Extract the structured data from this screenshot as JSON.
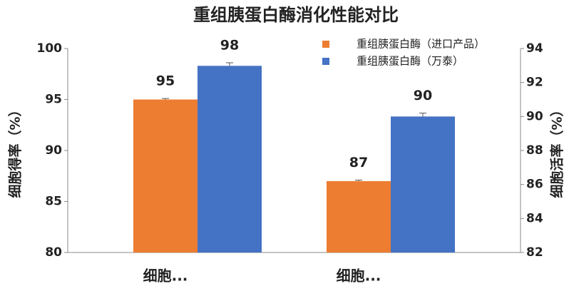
{
  "chart_data": {
    "type": "bar",
    "title": "重组胰蛋白酶消化性能对比",
    "categories": [
      "细胞...",
      "细胞..."
    ],
    "series": [
      {
        "name": "重组胰蛋白酶（进口产品）",
        "color": "#ed7d31",
        "values": [
          95,
          87
        ],
        "errors": [
          0.1,
          0.1
        ],
        "axes": [
          "y",
          "y"
        ]
      },
      {
        "name": "重组胰蛋白酶（万泰）",
        "color": "#4472c4",
        "values": [
          98.3,
          90
        ],
        "value_labels": [
          "98",
          "90"
        ],
        "errors": [
          0.3,
          0.2
        ],
        "axes": [
          "y",
          "y2"
        ]
      }
    ],
    "ylabel": "细胞得率（%）",
    "y2label": "细胞活率（%）",
    "ylim": [
      80,
      100
    ],
    "yticks": [
      80,
      85,
      90,
      95,
      100
    ],
    "y2lim": [
      82,
      94
    ],
    "y2ticks": [
      82,
      84,
      86,
      88,
      90,
      92,
      94
    ],
    "legend": "top-right"
  }
}
